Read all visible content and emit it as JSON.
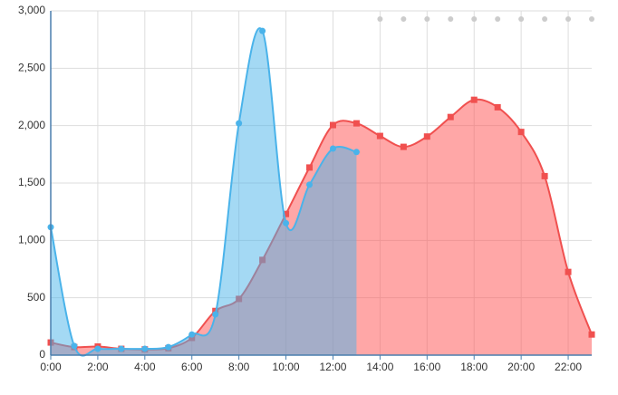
{
  "chart_data": {
    "type": "area",
    "categories": [
      "0:00",
      null,
      "2:00",
      null,
      "4:00",
      null,
      "6:00",
      null,
      "8:00",
      null,
      "10:00",
      null,
      "12:00",
      null,
      "14:00",
      null,
      "16:00",
      null,
      "18:00",
      null,
      "20:00",
      null,
      "22:00",
      null
    ],
    "series": [
      {
        "color": "#f0504f",
        "fill": "#ff4f4f",
        "marker": "square",
        "values": [
          110,
          70,
          75,
          55,
          50,
          60,
          150,
          385,
          490,
          830,
          1230,
          1635,
          2005,
          2020,
          1910,
          1815,
          1905,
          2075,
          2225,
          2160,
          1945,
          1560,
          725,
          180
        ]
      },
      {
        "color": "#4ab3ea",
        "fill": "#4ab3ea",
        "marker": "circle",
        "values": [
          1115,
          80,
          55,
          55,
          55,
          70,
          180,
          355,
          2020,
          2825,
          1150,
          1485,
          1800,
          1770,
          null,
          null,
          null,
          null,
          null,
          null,
          null,
          null,
          null,
          null
        ]
      }
    ],
    "ylim": [
      0,
      3000
    ],
    "yticks": [
      0,
      500,
      {
        "value": 1000,
        "label": "1,000"
      },
      {
        "value": 1500,
        "label": "1,500"
      },
      {
        "value": 2000,
        "label": "2,000"
      },
      {
        "value": 2500,
        "label": "2,500"
      },
      {
        "value": 3000,
        "label": "3,000"
      }
    ],
    "grid": true
  }
}
